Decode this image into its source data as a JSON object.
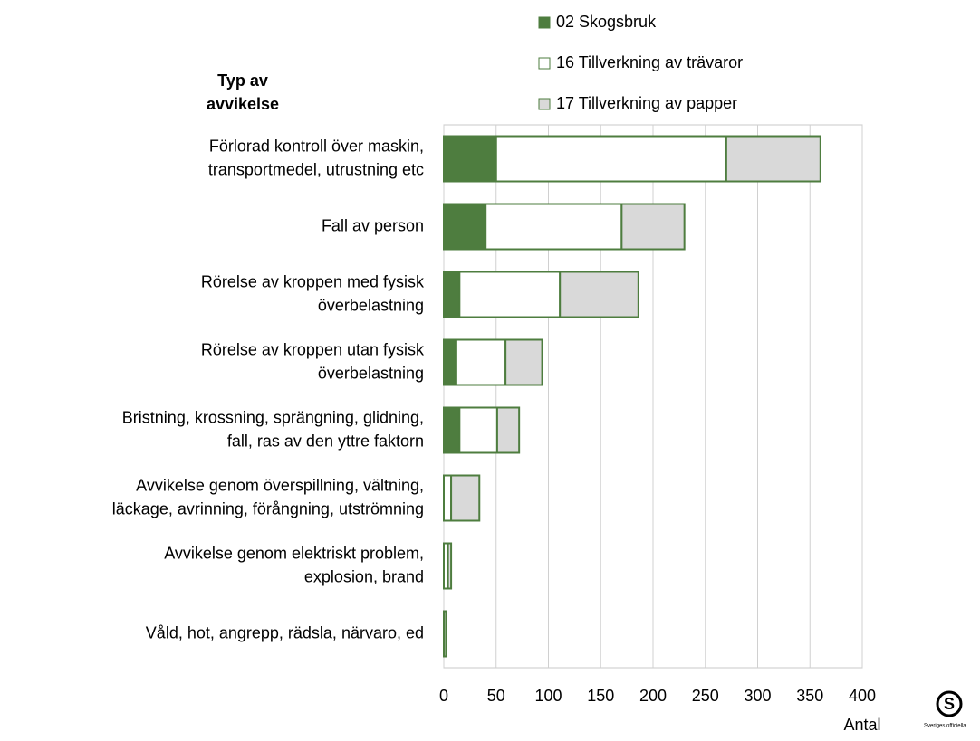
{
  "chart_data": {
    "type": "stacked-bar-horizontal",
    "y_axis_title": [
      "Typ av",
      "avvikelse"
    ],
    "x_axis_label": "Antal",
    "logo_text": "Sveriges officiella",
    "categories": [
      [
        "Förlorad kontroll över maskin,",
        "transportmedel, utrustning etc"
      ],
      [
        "Fall av person"
      ],
      [
        "Rörelse av kroppen med fysisk",
        "överbelastning"
      ],
      [
        "Rörelse av kroppen utan fysisk",
        "överbelastning"
      ],
      [
        "Bristning, krossning, sprängning, glidning,",
        "fall, ras av den yttre faktorn"
      ],
      [
        "Avvikelse genom överspillning, vältning,",
        "läckage, avrinning, förångning, utströmning"
      ],
      [
        "Avvikelse genom elektriskt problem,",
        "explosion, brand"
      ],
      [
        "Våld, hot, angrepp, rädsla, närvaro, ed"
      ]
    ],
    "series": [
      {
        "name": "02 Skogsbruk",
        "color": "#4e7d3f",
        "values": [
          50,
          40,
          15,
          12,
          15,
          0,
          0,
          0
        ]
      },
      {
        "name": "16 Tillverkning av trävaror",
        "color": "#ffffff",
        "values": [
          220,
          130,
          96,
          47,
          36,
          7,
          4,
          2
        ]
      },
      {
        "name": "17 Tillverkning av papper",
        "color": "#d9d9d9",
        "values": [
          90,
          60,
          75,
          35,
          21,
          27,
          3,
          0
        ]
      }
    ],
    "edge_color": "#4e7d3f",
    "xlim": [
      0,
      400
    ],
    "xticks": [
      0,
      50,
      100,
      150,
      200,
      250,
      300,
      350,
      400
    ],
    "grid": true
  }
}
